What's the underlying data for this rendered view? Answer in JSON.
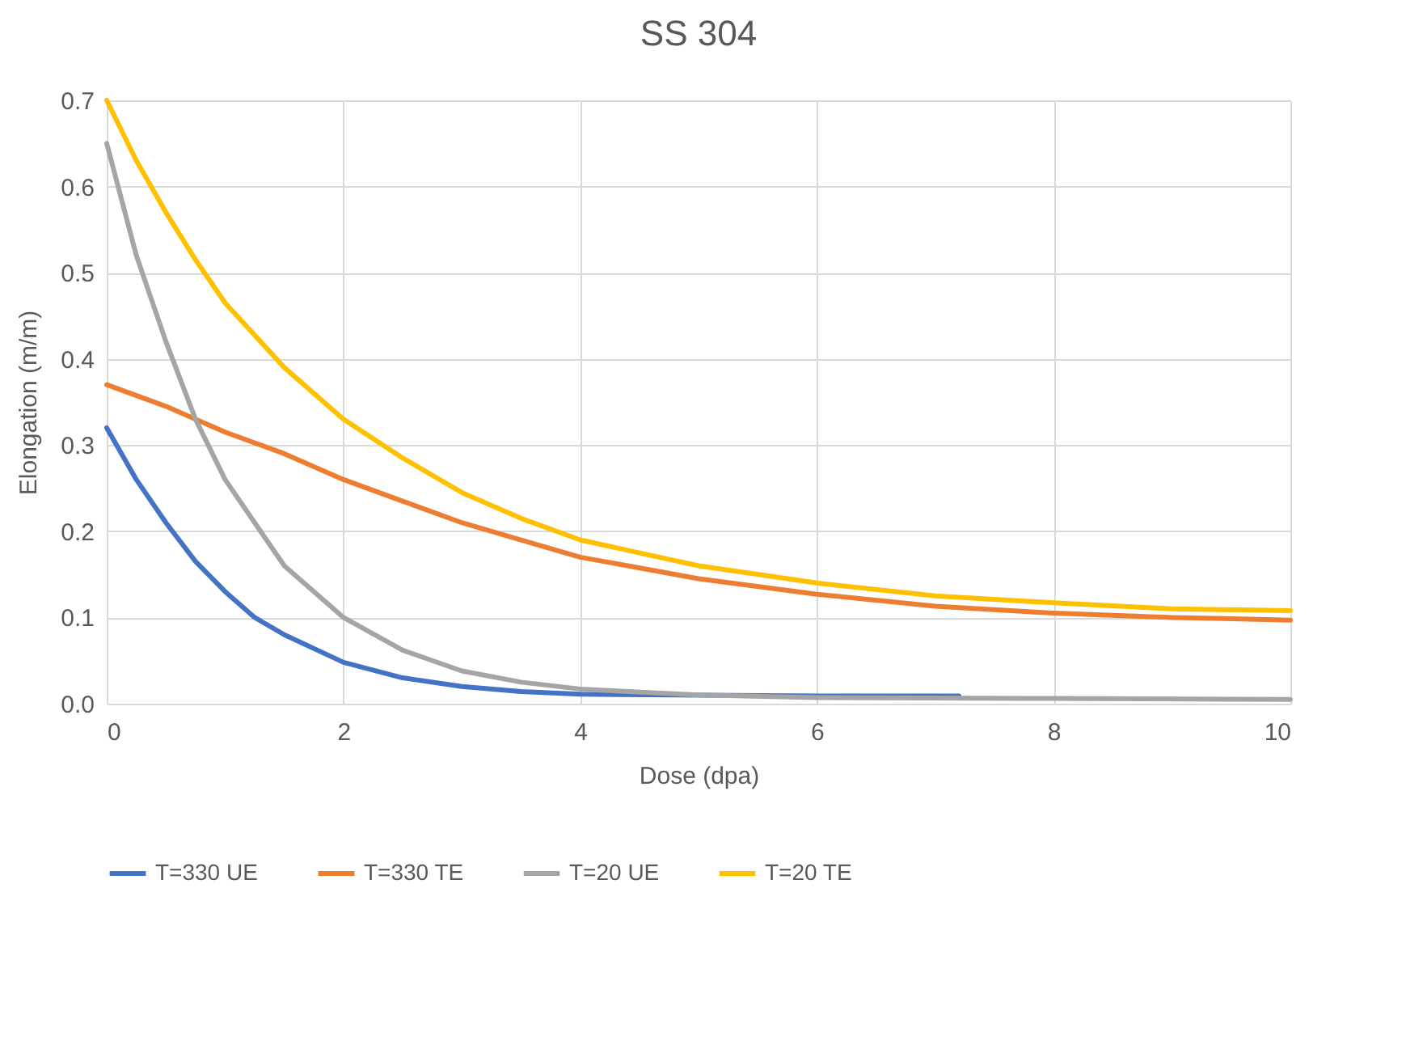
{
  "chart_data": {
    "type": "line",
    "title": "SS 304",
    "xlabel": "Dose (dpa)",
    "ylabel": "Elongation (m/m)",
    "xlim": [
      0,
      10
    ],
    "xticks": [
      0,
      2,
      4,
      6,
      8,
      10
    ],
    "ylim": [
      0,
      0.7
    ],
    "yticks": [
      {
        "value": 0,
        "label": "0.0"
      },
      0.1,
      0.2,
      0.3,
      0.4,
      0.5,
      0.6,
      0.7
    ],
    "grid": true,
    "legend": "bottom",
    "marker": "none",
    "line_style": "solid",
    "series": [
      {
        "name": "T=330 UE",
        "color": "#4472c4",
        "x": [
          0,
          0.25,
          0.5,
          0.75,
          1,
          1.25,
          1.5,
          2,
          2.5,
          3,
          3.5,
          4,
          4.8,
          6,
          7.2
        ],
        "values": [
          0.32,
          0.26,
          0.21,
          0.165,
          0.13,
          0.1,
          0.08,
          0.048,
          0.03,
          0.02,
          0.014,
          0.011,
          0.01,
          0.009,
          0.009
        ]
      },
      {
        "name": "T=330 TE",
        "color": "#ed7d31",
        "x": [
          0,
          0.5,
          1,
          1.5,
          2,
          2.5,
          3,
          3.5,
          4,
          5,
          6,
          7,
          8,
          9,
          10
        ],
        "values": [
          0.37,
          0.345,
          0.315,
          0.29,
          0.26,
          0.235,
          0.21,
          0.19,
          0.17,
          0.145,
          0.127,
          0.113,
          0.105,
          0.1,
          0.097
        ]
      },
      {
        "name": "T=20 UE",
        "color": "#a5a5a5",
        "x": [
          0,
          0.25,
          0.5,
          0.75,
          1,
          1.25,
          1.5,
          2,
          2.5,
          3,
          3.5,
          4,
          5,
          6,
          8,
          10
        ],
        "values": [
          0.65,
          0.52,
          0.42,
          0.33,
          0.26,
          0.21,
          0.16,
          0.1,
          0.062,
          0.038,
          0.025,
          0.017,
          0.01,
          0.007,
          0.006,
          0.005
        ]
      },
      {
        "name": "T=20 TE",
        "color": "#ffc000",
        "x": [
          0,
          0.25,
          0.5,
          0.75,
          1,
          1.5,
          2,
          2.5,
          3,
          3.5,
          4,
          5,
          6,
          7,
          8,
          9,
          10
        ],
        "values": [
          0.7,
          0.63,
          0.57,
          0.515,
          0.465,
          0.39,
          0.33,
          0.285,
          0.245,
          0.215,
          0.19,
          0.16,
          0.14,
          0.125,
          0.117,
          0.11,
          0.108
        ]
      }
    ]
  }
}
